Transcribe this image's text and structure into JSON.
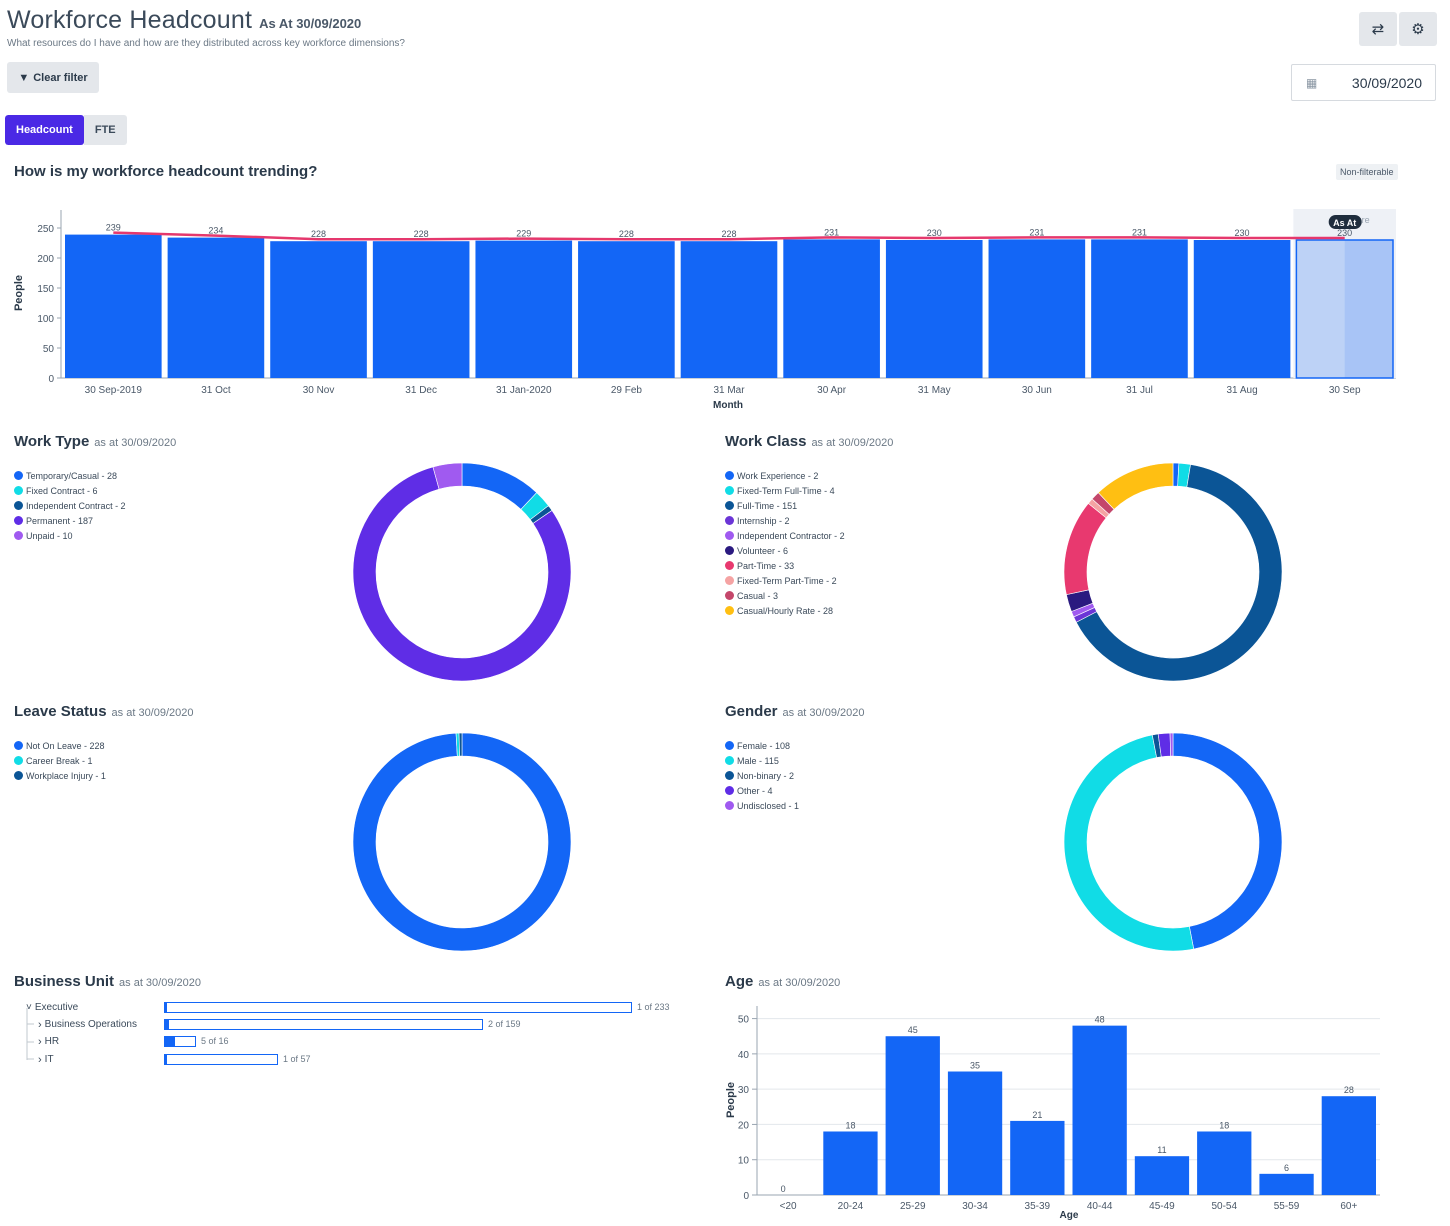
{
  "header": {
    "title": "Workforce Headcount",
    "as_at": "As At 30/09/2020",
    "subtitle": "What resources do I have and how are they distributed across key workforce dimensions?"
  },
  "toolbar": {
    "refresh_icon": "refresh-icon",
    "settings_icon": "gear-icon",
    "clear_filter_label": "Clear filter",
    "date_value": "30/09/2020"
  },
  "tabs": [
    {
      "label": "Headcount",
      "active": true
    },
    {
      "label": "FTE",
      "active": false
    }
  ],
  "trend": {
    "title": "How is my workforce headcount trending?",
    "badge": "Non-filterable",
    "future_label": "Future",
    "as_at_tag": "As At",
    "chart_data": {
      "type": "bar",
      "categories": [
        "30 Sep-2019",
        "31 Oct",
        "30 Nov",
        "31 Dec",
        "31 Jan-2020",
        "29 Feb",
        "31 Mar",
        "30 Apr",
        "31 May",
        "30 Jun",
        "31 Jul",
        "31 Aug",
        "30 Sep"
      ],
      "values": [
        239,
        234,
        228,
        228,
        229,
        228,
        228,
        231,
        230,
        231,
        231,
        230,
        230
      ],
      "xlabel": "Month",
      "ylabel": "People",
      "ylim": [
        0,
        280
      ],
      "yticks": [
        0,
        50,
        100,
        150,
        200,
        250
      ],
      "bar_color": "#1366f6",
      "line_color": "#e5386d"
    }
  },
  "work_type": {
    "title": "Work Type",
    "as_at": "as at 30/09/2020",
    "legend": [
      {
        "label": "Temporary/Casual - 28",
        "value": 28,
        "color": "#1366f6"
      },
      {
        "label": "Fixed Contract - 6",
        "value": 6,
        "color": "#11dce6"
      },
      {
        "label": "Independent Contract - 2",
        "value": 2,
        "color": "#0b5596"
      },
      {
        "label": "Permanent - 187",
        "value": 187,
        "color": "#5f2de6"
      },
      {
        "label": "Unpaid - 10",
        "value": 10,
        "color": "#a05af0"
      }
    ]
  },
  "work_class": {
    "title": "Work Class",
    "as_at": "as at 30/09/2020",
    "legend": [
      {
        "label": "Work Experience - 2",
        "value": 2,
        "color": "#1366f6"
      },
      {
        "label": "Fixed-Term Full-Time - 4",
        "value": 4,
        "color": "#11dce6"
      },
      {
        "label": "Full-Time - 151",
        "value": 151,
        "color": "#0b5596"
      },
      {
        "label": "Internship - 2",
        "value": 2,
        "color": "#6b35d6"
      },
      {
        "label": "Independent Contractor - 2",
        "value": 2,
        "color": "#a05af0"
      },
      {
        "label": "Volunteer - 6",
        "value": 6,
        "color": "#2b1a80"
      },
      {
        "label": "Part-Time - 33",
        "value": 33,
        "color": "#e8396f"
      },
      {
        "label": "Fixed-Term Part-Time - 2",
        "value": 2,
        "color": "#f5a3a3"
      },
      {
        "label": "Casual - 3",
        "value": 3,
        "color": "#c4476b"
      },
      {
        "label": "Casual/Hourly Rate - 28",
        "value": 28,
        "color": "#ffbf12"
      }
    ]
  },
  "leave_status": {
    "title": "Leave Status",
    "as_at": "as at 30/09/2020",
    "legend": [
      {
        "label": "Not On Leave - 228",
        "value": 228,
        "color": "#1366f6"
      },
      {
        "label": "Career Break - 1",
        "value": 1,
        "color": "#11dce6"
      },
      {
        "label": "Workplace Injury - 1",
        "value": 1,
        "color": "#0b5596"
      }
    ]
  },
  "gender": {
    "title": "Gender",
    "as_at": "as at 30/09/2020",
    "legend": [
      {
        "label": "Female - 108",
        "value": 108,
        "color": "#1366f6"
      },
      {
        "label": "Male - 115",
        "value": 115,
        "color": "#11dce6"
      },
      {
        "label": "Non-binary - 2",
        "value": 2,
        "color": "#0b5596"
      },
      {
        "label": "Other - 4",
        "value": 4,
        "color": "#5f2de6"
      },
      {
        "label": "Undisclosed - 1",
        "value": 1,
        "color": "#a05af0"
      }
    ]
  },
  "business_unit": {
    "title": "Business Unit",
    "as_at": "as at 30/09/2020",
    "rows": [
      {
        "label": "Executive",
        "count": "1 of 233",
        "filled": 1,
        "total": 233
      },
      {
        "label": "Business Operations",
        "count": "2 of 159",
        "filled": 2,
        "total": 159
      },
      {
        "label": "HR",
        "count": "5 of 16",
        "filled": 5,
        "total": 16
      },
      {
        "label": "IT",
        "count": "1 of 57",
        "filled": 1,
        "total": 57
      }
    ]
  },
  "age": {
    "title": "Age",
    "as_at": "as at 30/09/2020",
    "chart_data": {
      "type": "bar",
      "categories": [
        "<20",
        "20-24",
        "25-29",
        "30-34",
        "35-39",
        "40-44",
        "45-49",
        "50-54",
        "55-59",
        "60+"
      ],
      "values": [
        0,
        18,
        45,
        35,
        21,
        48,
        11,
        18,
        6,
        28
      ],
      "xlabel": "Age",
      "ylabel": "People",
      "ylim": [
        0,
        53
      ],
      "yticks": [
        0,
        10,
        20,
        30,
        40,
        50
      ],
      "bar_color": "#1366f6"
    }
  }
}
